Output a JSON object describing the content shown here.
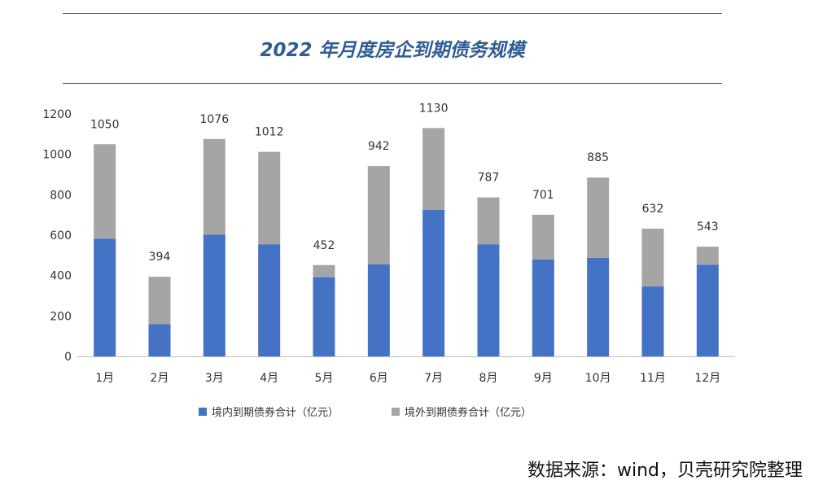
{
  "chart_data": {
    "type": "bar",
    "stacked": true,
    "title": "2022 年月度房企到期债务规模",
    "categories": [
      "1月",
      "2月",
      "3月",
      "4月",
      "5月",
      "6月",
      "7月",
      "8月",
      "9月",
      "10月",
      "11月",
      "12月"
    ],
    "series": [
      {
        "name": "境内到期债券合计（亿元）",
        "color": "#4472c4",
        "values": [
          583,
          160,
          603,
          555,
          392,
          455,
          725,
          555,
          480,
          488,
          346,
          454
        ]
      },
      {
        "name": "境外到期债券合计（亿元）",
        "color": "#a5a5a5",
        "values": [
          467,
          234,
          473,
          457,
          60,
          487,
          405,
          232,
          221,
          397,
          286,
          89
        ]
      }
    ],
    "totals": [
      1050,
      394,
      1076,
      1012,
      452,
      942,
      1130,
      787,
      701,
      885,
      632,
      543
    ],
    "ylim": [
      0,
      1200
    ],
    "yticks": [
      0,
      200,
      400,
      600,
      800,
      1000,
      1200
    ],
    "xlabel": "",
    "ylabel": "",
    "grid": false,
    "legend_position": "bottom"
  },
  "source_note": "数据来源：wind，贝壳研究院整理"
}
